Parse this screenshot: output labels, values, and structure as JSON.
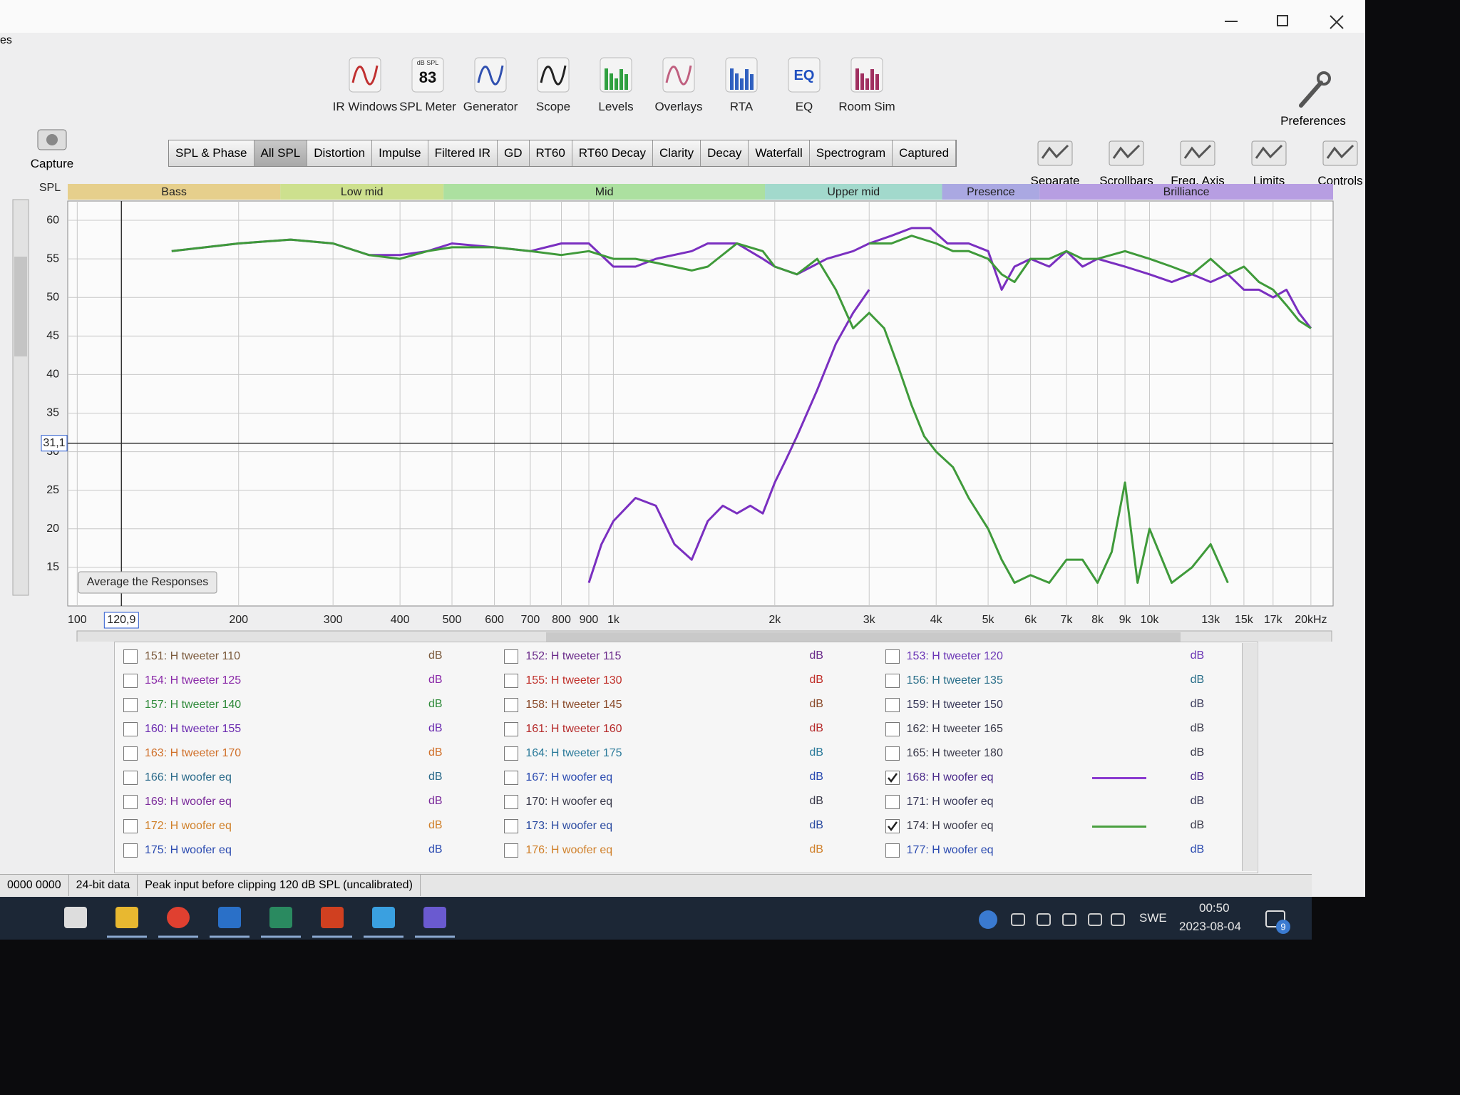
{
  "window": {
    "partial_menu": "es"
  },
  "capture": "Capture",
  "toolbar": [
    {
      "label": "IR Windows"
    },
    {
      "label": "SPL Meter",
      "badge": "dB SPL",
      "reading": 83
    },
    {
      "label": "Generator"
    },
    {
      "label": "Scope"
    },
    {
      "label": "Levels"
    },
    {
      "label": "Overlays"
    },
    {
      "label": "RTA"
    },
    {
      "label": "EQ",
      "badge": "EQ"
    },
    {
      "label": "Room Sim"
    }
  ],
  "preferences": "Preferences",
  "tabs": [
    {
      "label": "SPL & Phase",
      "active": false
    },
    {
      "label": "All SPL",
      "active": true
    },
    {
      "label": "Distortion",
      "active": false
    },
    {
      "label": "Impulse",
      "active": false
    },
    {
      "label": "Filtered IR",
      "active": false
    },
    {
      "label": "GD",
      "active": false
    },
    {
      "label": "RT60",
      "active": false
    },
    {
      "label": "RT60 Decay",
      "active": false
    },
    {
      "label": "Clarity",
      "active": false
    },
    {
      "label": "Decay",
      "active": false
    },
    {
      "label": "Waterfall",
      "active": false
    },
    {
      "label": "Spectrogram",
      "active": false
    },
    {
      "label": "Captured",
      "active": false
    }
  ],
  "view_buttons": [
    "Separate",
    "Scrollbars",
    "Freq. Axis",
    "Limits",
    "Controls"
  ],
  "chart_data": {
    "type": "line",
    "y_label": "SPL",
    "xscale": "log",
    "grid": true,
    "xlim": [
      96,
      22000
    ],
    "ylim": [
      10,
      62.5
    ],
    "yticks": [
      15,
      20,
      25,
      30,
      35,
      40,
      45,
      50,
      55,
      60
    ],
    "xticks": [
      100,
      200,
      300,
      400,
      500,
      600,
      700,
      800,
      900,
      {
        "value": 1000,
        "label": "1k"
      },
      {
        "value": 2000,
        "label": "2k"
      },
      {
        "value": 3000,
        "label": "3k"
      },
      {
        "value": 4000,
        "label": "4k"
      },
      {
        "value": 5000,
        "label": "5k"
      },
      {
        "value": 6000,
        "label": "6k"
      },
      {
        "value": 7000,
        "label": "7k"
      },
      {
        "value": 8000,
        "label": "8k"
      },
      {
        "value": 9000,
        "label": "9k"
      },
      {
        "value": 10000,
        "label": "10k"
      },
      {
        "value": 13000,
        "label": "13k"
      },
      {
        "value": 15000,
        "label": "15k"
      },
      {
        "value": 17000,
        "label": "17k"
      },
      {
        "value": 20000,
        "label": "20kHz"
      }
    ],
    "bands": [
      {
        "label": "Bass",
        "color": "#e6cf8c"
      },
      {
        "label": "Low mid",
        "color": "#cde08e"
      },
      {
        "label": "Mid",
        "color": "#ace0a0"
      },
      {
        "label": "Upper mid",
        "color": "#a2d9cc"
      },
      {
        "label": "Presence",
        "color": "#aaa8e2"
      },
      {
        "label": "Brilliance",
        "color": "#b79ee2"
      }
    ],
    "cursor": {
      "x": {
        "value": 120.9,
        "label": "120,9"
      },
      "y": {
        "value": 31.1,
        "label": "31,1"
      }
    },
    "button": "Average the Responses",
    "series": [
      {
        "color": "#7a2fc0",
        "x": [
          150,
          200,
          250,
          300,
          350,
          400,
          450,
          500,
          600,
          700,
          800,
          900,
          1000,
          1100,
          1200,
          1400,
          1500,
          1700,
          1900,
          2000,
          2200,
          2500,
          2800,
          3000,
          3300,
          3600,
          3900,
          4200,
          4600,
          5000,
          5300,
          5600,
          6000,
          6500,
          7000,
          7500,
          8000,
          9000,
          10000,
          11000,
          12000,
          13000,
          14000,
          15000,
          16000,
          17000,
          18000,
          19000,
          20000
        ],
        "values": [
          56,
          57,
          57.5,
          57,
          55.5,
          55.5,
          56,
          57,
          56.5,
          56,
          57,
          57,
          54,
          54,
          55,
          56,
          57,
          57,
          55,
          54,
          53,
          55,
          56,
          57,
          58,
          59,
          59,
          57,
          57,
          56,
          51,
          54,
          55,
          54,
          56,
          54,
          55,
          54,
          53,
          52,
          53,
          52,
          53,
          51,
          51,
          50,
          51,
          48,
          46
        ]
      },
      {
        "color": "#7a2fc0",
        "x": [
          900,
          950,
          1000,
          1100,
          1200,
          1300,
          1400,
          1500,
          1600,
          1700,
          1800,
          1900,
          2000,
          2100,
          2200,
          2400,
          2600,
          2800,
          3000
        ],
        "values": [
          13,
          18,
          21,
          24,
          23,
          18,
          16,
          21,
          23,
          22,
          23,
          22,
          26,
          29,
          32,
          38,
          44,
          48,
          51
        ]
      },
      {
        "color": "#3f9a3a",
        "x": [
          150,
          200,
          250,
          300,
          350,
          400,
          450,
          500,
          600,
          700,
          800,
          900,
          1000,
          1100,
          1200,
          1400,
          1500,
          1700,
          1900,
          2000,
          2200,
          2400,
          2600,
          2800,
          3000,
          3200,
          3400,
          3600,
          3800,
          4000,
          4300,
          4600,
          5000,
          5300,
          5600,
          6000,
          6500,
          7000,
          7500,
          8000,
          8500,
          9000,
          9500,
          10000,
          11000,
          12000,
          13000,
          14000
        ],
        "values": [
          56,
          57,
          57.5,
          57,
          55.5,
          55,
          56,
          56.5,
          56.5,
          56,
          55.5,
          56,
          55,
          55,
          54.5,
          53.5,
          54,
          57,
          56,
          54,
          53,
          55,
          51,
          46,
          48,
          46,
          41,
          36,
          32,
          30,
          28,
          24,
          20,
          16,
          13,
          14,
          13,
          16,
          16,
          13,
          17,
          26,
          13,
          20,
          13,
          15,
          18,
          13
        ]
      },
      {
        "color": "#3f9a3a",
        "x": [
          3000,
          3300,
          3600,
          4000,
          4300,
          4600,
          5000,
          5300,
          5600,
          6000,
          6500,
          7000,
          7500,
          8000,
          9000,
          10000,
          11000,
          12000,
          13000,
          14000,
          15000,
          16000,
          17000,
          18000,
          19000,
          20000
        ],
        "values": [
          57,
          57,
          58,
          57,
          56,
          56,
          55,
          53,
          52,
          55,
          55,
          56,
          55,
          55,
          56,
          55,
          54,
          53,
          55,
          53,
          54,
          52,
          51,
          49,
          47,
          46
        ]
      }
    ]
  },
  "measurements": [
    {
      "label": "151: H tweeter 110",
      "unit": "dB",
      "color": "#7b5a3c",
      "checked": false
    },
    {
      "label": "152: H tweeter 115",
      "unit": "dB",
      "color": "#6a2a8a",
      "checked": false
    },
    {
      "label": "153: H tweeter 120",
      "unit": "dB",
      "color": "#6a35b5",
      "checked": false
    },
    {
      "label": "154: H tweeter 125",
      "unit": "dB",
      "color": "#8a2aa8",
      "checked": false
    },
    {
      "label": "155: H tweeter 130",
      "unit": "dB",
      "color": "#c0302a",
      "checked": false
    },
    {
      "label": "156: H tweeter 135",
      "unit": "dB",
      "color": "#2a6f8a",
      "checked": false
    },
    {
      "label": "157: H tweeter 140",
      "unit": "dB",
      "color": "#2f8a3a",
      "checked": false
    },
    {
      "label": "158: H tweeter 145",
      "unit": "dB",
      "color": "#8a4a2a",
      "checked": false
    },
    {
      "label": "159: H tweeter 150",
      "unit": "dB",
      "color": "#3a3a5a",
      "checked": false
    },
    {
      "label": "160: H tweeter 155",
      "unit": "dB",
      "color": "#6a2ab0",
      "checked": false
    },
    {
      "label": "161: H tweeter 160",
      "unit": "dB",
      "color": "#b52a2a",
      "checked": false
    },
    {
      "label": "162: H tweeter 165",
      "unit": "dB",
      "color": "#3a3a4a",
      "checked": false
    },
    {
      "label": "163: H tweeter 170",
      "unit": "dB",
      "color": "#d0702a",
      "checked": false
    },
    {
      "label": "164: H tweeter 175",
      "unit": "dB",
      "color": "#2a7a9a",
      "checked": false
    },
    {
      "label": "165: H tweeter 180",
      "unit": "dB",
      "color": "#3a3a4a",
      "checked": false
    },
    {
      "label": "166: H woofer eq",
      "unit": "dB",
      "color": "#2a6a8a",
      "checked": false
    },
    {
      "label": "167: H woofer eq",
      "unit": "dB",
      "color": "#2a4ab0",
      "checked": false
    },
    {
      "label": "168: H woofer eq",
      "unit": "dB",
      "color": "#4a2a8a",
      "checked": true,
      "trace_color": "#8a3ad0"
    },
    {
      "label": "169: H woofer eq",
      "unit": "dB",
      "color": "#7a2a9a",
      "checked": false
    },
    {
      "label": "170: H woofer eq",
      "unit": "dB",
      "color": "#3a3a4a",
      "checked": false
    },
    {
      "label": "171: H woofer eq",
      "unit": "dB",
      "color": "#3a3a5a",
      "checked": false
    },
    {
      "label": "172: H woofer eq",
      "unit": "dB",
      "color": "#d0802a",
      "checked": false
    },
    {
      "label": "173: H woofer eq",
      "unit": "dB",
      "color": "#2a4aa0",
      "checked": false
    },
    {
      "label": "174: H woofer eq",
      "unit": "dB",
      "color": "#3a3a4a",
      "checked": true,
      "trace_color": "#4aa040"
    },
    {
      "label": "175: H woofer eq",
      "unit": "dB",
      "color": "#2a4ab0",
      "checked": false
    },
    {
      "label": "176: H woofer eq",
      "unit": "dB",
      "color": "#d0802a",
      "checked": false
    },
    {
      "label": "177: H woofer eq",
      "unit": "dB",
      "color": "#2a4ab0",
      "checked": false
    }
  ],
  "status_bar": [
    "0000 0000",
    "24-bit data",
    "Peak input before clipping 120 dB SPL (uncalibrated)"
  ],
  "taskbar": {
    "language": "SWE",
    "time": "00:50",
    "date": "2023-08-04",
    "notifications": 9
  }
}
